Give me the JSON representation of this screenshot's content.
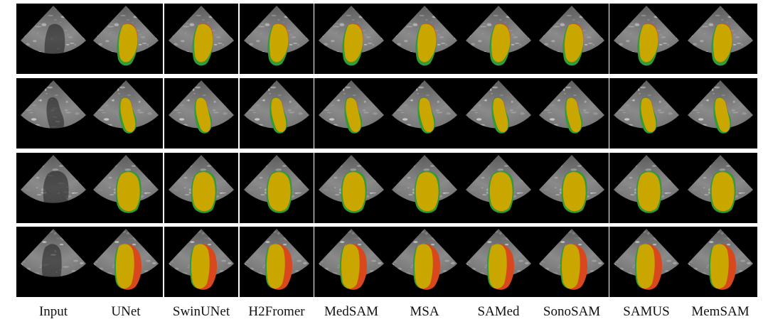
{
  "columns": [
    {
      "label": "Input",
      "has_mask": false
    },
    {
      "label": "UNet",
      "has_mask": true
    },
    {
      "label": "SwinUNet",
      "has_mask": true
    },
    {
      "label": "H2Fromer",
      "has_mask": true
    },
    {
      "label": "MedSAM",
      "has_mask": true
    },
    {
      "label": "MSA",
      "has_mask": true
    },
    {
      "label": "SAMed",
      "has_mask": true
    },
    {
      "label": "SonoSAM",
      "has_mask": true
    },
    {
      "label": "SAMUS",
      "has_mask": true
    },
    {
      "label": "MemSAM",
      "has_mask": true
    }
  ],
  "rows": 4,
  "colors": {
    "background": "#000000",
    "ultrasound_tissue": "#8a8a8a",
    "prediction_only": "#d9481c",
    "ground_truth_only": "#2e9e3a",
    "overlap": "#c9a600"
  }
}
